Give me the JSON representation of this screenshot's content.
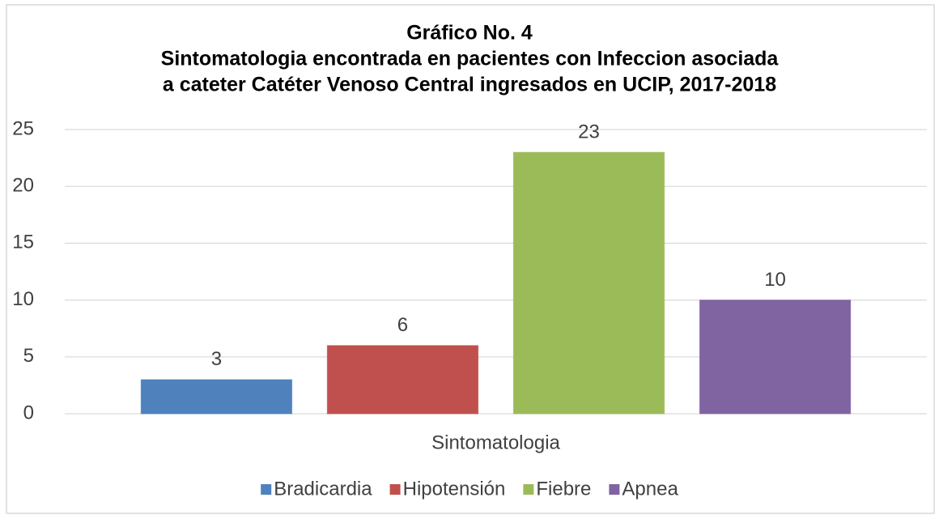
{
  "chart_data": {
    "type": "bar",
    "title": [
      "Gráfico No. 4",
      "Sintomatologia encontrada en pacientes con Infeccion asociada",
      "a cateter Catéter Venoso Central ingresados en  UCIP, 2017-2018"
    ],
    "categories": [
      "Sintomatologia"
    ],
    "series": [
      {
        "name": "Bradicardia",
        "color": "#4f81bd",
        "values": [
          3
        ]
      },
      {
        "name": "Hipotensión",
        "color": "#c0504d",
        "values": [
          6
        ]
      },
      {
        "name": "Fiebre",
        "color": "#9bbb59",
        "values": [
          23
        ]
      },
      {
        "name": "Apnea",
        "color": "#8064a2",
        "values": [
          10
        ]
      }
    ],
    "ylim": [
      0,
      25
    ],
    "yticks": [
      0,
      5,
      10,
      15,
      20,
      25
    ],
    "grid": true,
    "legend": "bottom"
  }
}
